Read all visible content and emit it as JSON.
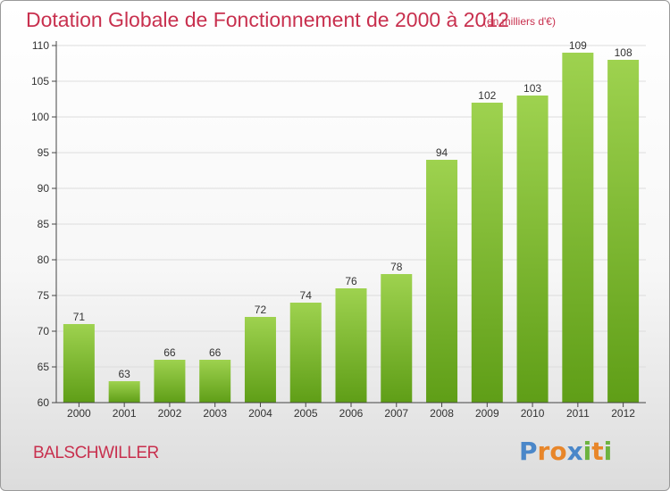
{
  "title": "Dotation Globale de Fonctionnement de 2000 à 2012",
  "subtitle": "(en milliers d'€)",
  "municipality": "BALSCHWILLER",
  "logo": {
    "text": "Proxiti",
    "letters": [
      {
        "char": "P",
        "color": "#4a87c9"
      },
      {
        "char": "r",
        "color": "#e8862a"
      },
      {
        "char": "o",
        "color": "#e8862a"
      },
      {
        "char": "x",
        "color": "#4a87c9"
      },
      {
        "char": "i",
        "color": "#6db33f"
      },
      {
        "char": "t",
        "color": "#e8862a"
      },
      {
        "char": "i",
        "color": "#6db33f"
      }
    ]
  },
  "colors": {
    "text_accent": "#c8304e",
    "bar_light": "#9ed24f",
    "bar_dark": "#5f9e17",
    "grid": "#dddddd",
    "axis": "#444444"
  },
  "chart_data": {
    "type": "bar",
    "categories": [
      "2000",
      "2001",
      "2002",
      "2003",
      "2004",
      "2005",
      "2006",
      "2007",
      "2008",
      "2009",
      "2010",
      "2011",
      "2012"
    ],
    "values": [
      71,
      63,
      66,
      66,
      72,
      74,
      76,
      78,
      94,
      102,
      103,
      109,
      108
    ],
    "ylim": [
      60,
      110
    ],
    "yticks": [
      60,
      65,
      70,
      75,
      80,
      85,
      90,
      95,
      100,
      105,
      110
    ],
    "grid": true,
    "xlabel": "",
    "ylabel": ""
  }
}
